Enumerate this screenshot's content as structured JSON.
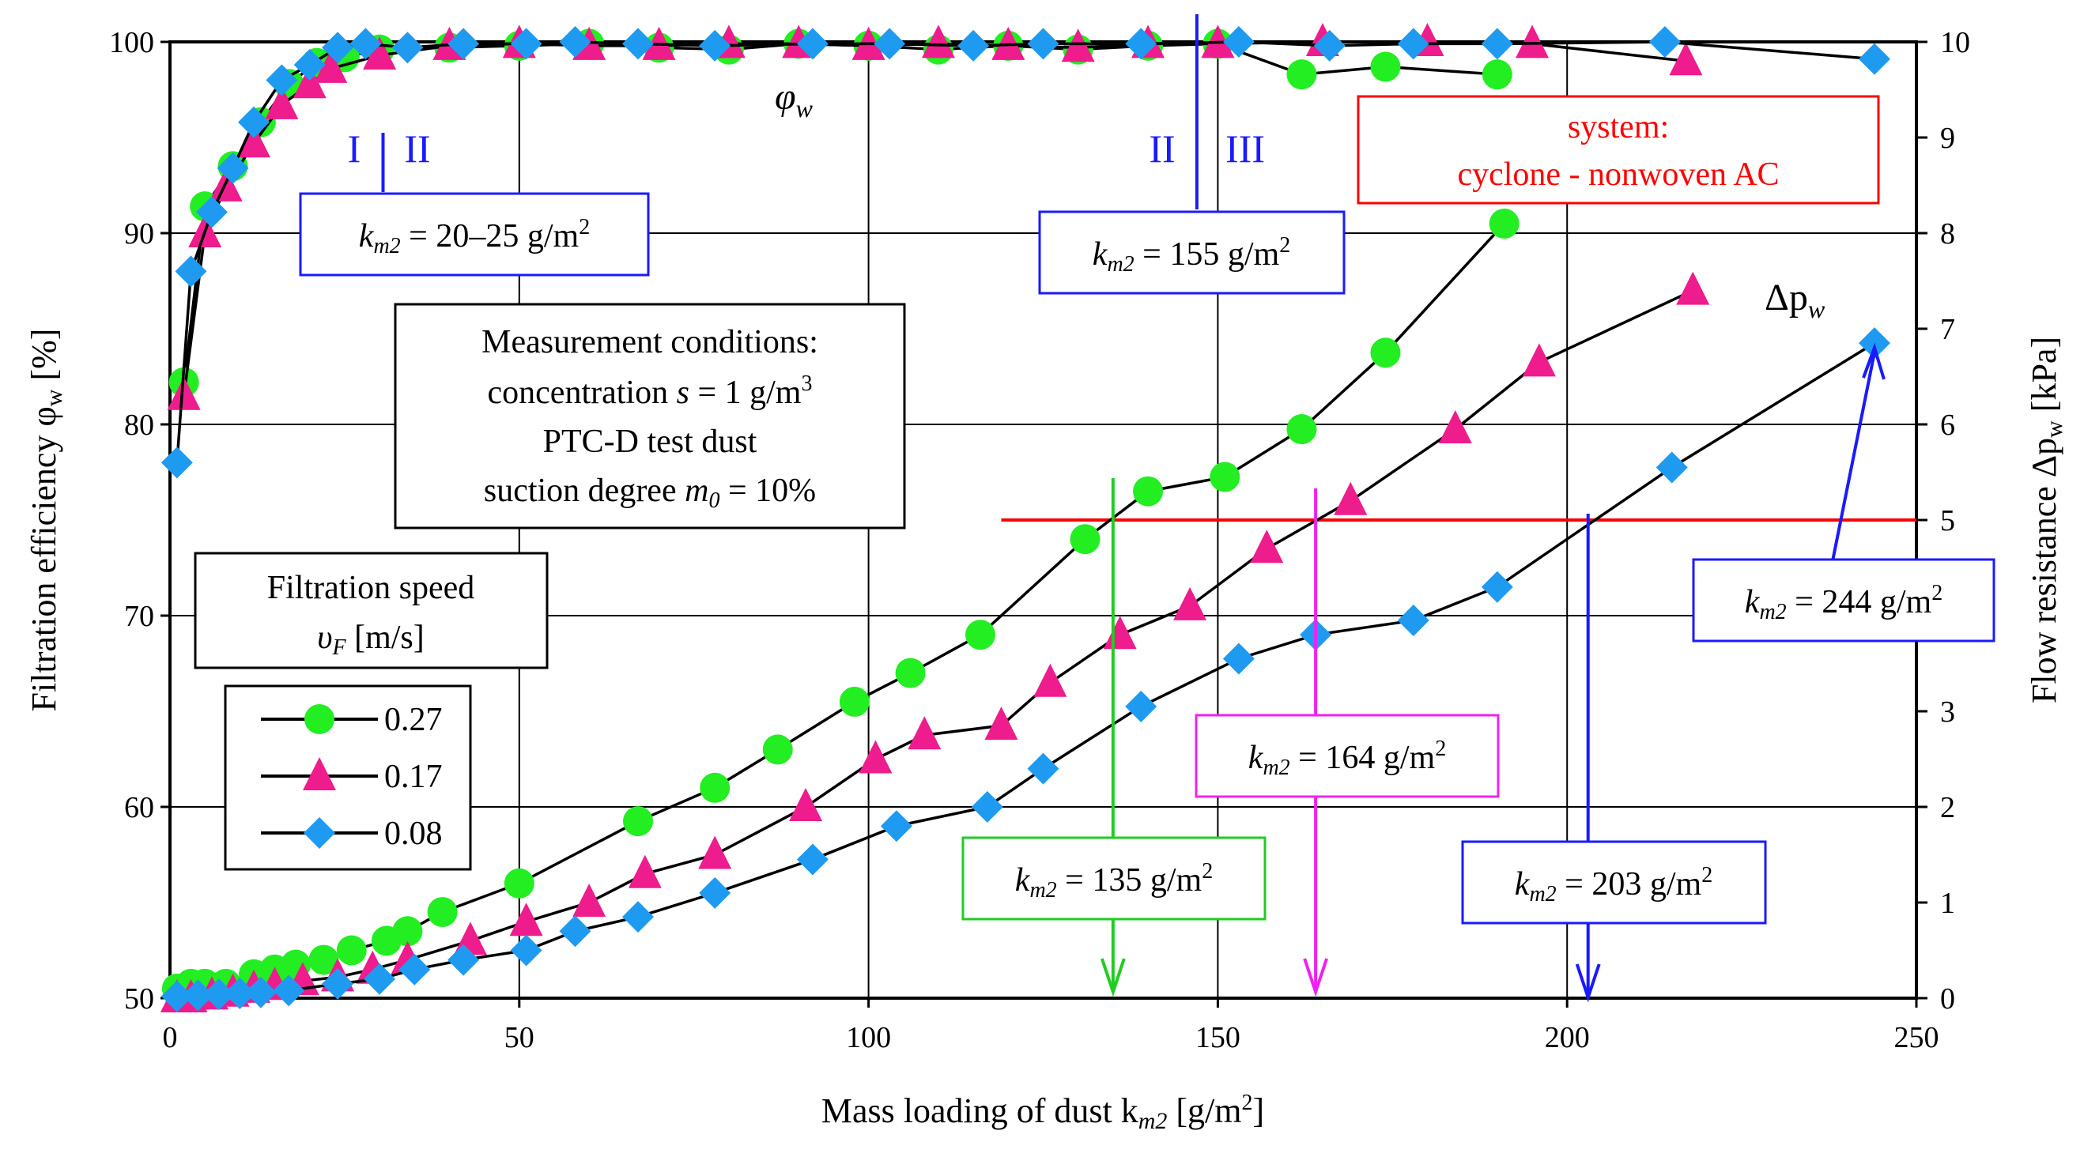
{
  "chart_data": {
    "type": "line",
    "title": "",
    "xlabel": "Mass loading of dust k",
    "xlabel_sub": "m2",
    "xlabel_unit": " [g/m",
    "xlabel_sup": "2",
    "xlabel_end": "]",
    "ylabel_left": "Filtration efficiency φ",
    "ylabel_left_sub": "w",
    "ylabel_left_unit": " [%]",
    "ylabel_right": "Flow resistance Δp",
    "ylabel_right_sub": "w",
    "ylabel_right_unit": " [kPa]",
    "xlim": [
      0,
      250
    ],
    "ylim_left": [
      50,
      100
    ],
    "ylim_right": [
      0,
      10
    ],
    "x_ticks": [
      "0",
      "50",
      "100",
      "150",
      "200",
      "250"
    ],
    "y_left_ticks": [
      "50",
      "60",
      "70",
      "80",
      "90",
      "100"
    ],
    "y_right_ticks": [
      "0",
      "1",
      "2",
      "3",
      "4",
      "5",
      "6",
      "7",
      "8",
      "9",
      "10"
    ],
    "grid": true,
    "efficiency_series": [
      {
        "name": "0.27",
        "marker": "circle",
        "color": "#22ee22",
        "x": [
          2,
          5,
          9,
          13,
          17,
          21,
          25,
          30,
          40,
          50,
          60,
          70,
          80,
          90,
          100,
          110,
          120,
          130,
          140,
          150,
          162,
          174,
          190
        ],
        "y": [
          82.2,
          91.4,
          93.5,
          95.8,
          97.8,
          98.9,
          99.2,
          99.6,
          99.7,
          99.8,
          99.9,
          99.7,
          99.6,
          99.9,
          99.8,
          99.6,
          99.8,
          99.6,
          99.8,
          99.9,
          98.3,
          98.7,
          98.3
        ]
      },
      {
        "name": "0.17",
        "marker": "triangle",
        "color": "#ee1c8c",
        "x": [
          2,
          5,
          8,
          12,
          16,
          20,
          23,
          30,
          40,
          50,
          60,
          70,
          80,
          90,
          100,
          110,
          120,
          130,
          140,
          150,
          165,
          180,
          195,
          217
        ],
        "y": [
          81.5,
          90,
          92.4,
          94.7,
          96.7,
          97.8,
          98.6,
          99.3,
          99.8,
          99.9,
          99.8,
          99.8,
          99.9,
          99.9,
          99.8,
          99.9,
          99.8,
          99.7,
          99.9,
          99.9,
          100,
          100,
          99.9,
          99
        ]
      },
      {
        "name": "0.08",
        "marker": "diamond",
        "color": "#1e9bf0",
        "x": [
          1,
          3,
          6,
          9,
          12,
          16,
          20,
          24,
          28,
          34,
          42,
          51,
          58,
          67,
          78,
          92,
          103,
          115,
          125,
          139,
          153,
          166,
          178,
          190,
          214,
          244
        ],
        "y": [
          78,
          88,
          91.1,
          93.4,
          95.8,
          98,
          98.8,
          99.7,
          99.9,
          99.7,
          99.9,
          99.9,
          100,
          99.9,
          99.8,
          99.9,
          99.9,
          99.8,
          99.9,
          99.9,
          100,
          99.8,
          99.9,
          99.9,
          100,
          99.1
        ]
      }
    ],
    "resistance_series": [
      {
        "name": "0.27",
        "marker": "circle",
        "color": "#22ee22",
        "x": [
          1,
          3,
          5,
          8,
          12,
          15,
          18,
          22,
          26,
          31,
          34,
          39,
          50,
          67,
          78,
          87,
          98,
          106,
          116,
          131,
          140,
          151,
          162,
          174,
          191
        ],
        "y": [
          0.1,
          0.15,
          0.15,
          0.15,
          0.25,
          0.3,
          0.35,
          0.4,
          0.5,
          0.6,
          0.7,
          0.9,
          1.2,
          1.85,
          2.2,
          2.6,
          3.1,
          3.4,
          3.8,
          4.8,
          5.3,
          5.45,
          5.95,
          6.75,
          8.1
        ]
      },
      {
        "name": "0.17",
        "marker": "triangle",
        "color": "#ee1c8c",
        "x": [
          1,
          3,
          6,
          9,
          12,
          15,
          19,
          24,
          29,
          34,
          43,
          51,
          60,
          68,
          78,
          91,
          101,
          108,
          119,
          126,
          136,
          146,
          157,
          169,
          184,
          196,
          218
        ],
        "y": [
          0,
          0,
          0.03,
          0.06,
          0.1,
          0.13,
          0.18,
          0.22,
          0.3,
          0.4,
          0.6,
          0.8,
          1,
          1.3,
          1.5,
          2.0,
          2.5,
          2.75,
          2.85,
          3.3,
          3.8,
          4.1,
          4.7,
          5.2,
          5.95,
          6.65,
          7.4
        ]
      },
      {
        "name": "0.08",
        "marker": "diamond",
        "color": "#1e9bf0",
        "x": [
          1,
          4,
          7,
          10,
          13,
          17,
          24,
          30,
          35,
          42,
          51,
          58,
          67,
          78,
          92,
          104,
          117,
          125,
          139,
          153,
          164,
          178,
          190,
          215,
          244
        ],
        "y": [
          0.02,
          0.03,
          0.04,
          0.05,
          0.06,
          0.08,
          0.15,
          0.2,
          0.3,
          0.4,
          0.5,
          0.7,
          0.85,
          1.1,
          1.45,
          1.8,
          2.0,
          2.4,
          3.05,
          3.55,
          3.8,
          3.95,
          4.3,
          5.55,
          6.85
        ]
      }
    ],
    "threshold_resistance_kpa": 5,
    "threshold_x_start": 119,
    "zone_dividers": [
      {
        "x": 30.5,
        "left_label": "I",
        "right_label": "II"
      },
      {
        "x": 147,
        "left_label": "II",
        "right_label": "III"
      }
    ],
    "curve_labels": {
      "efficiency": "φ",
      "efficiency_sub": "w",
      "resistance": "Δp",
      "resistance_sub": "w"
    },
    "arrows": [
      {
        "x": 135,
        "color": "#22cc22"
      },
      {
        "x": 164,
        "color": "#ee22ee"
      },
      {
        "x": 203,
        "color": "#1a1aff"
      },
      {
        "x": 244,
        "color": "#1a1aff"
      }
    ],
    "annotations": [
      {
        "id": "k1",
        "prefix": "k",
        "sub": "m2",
        "text": " = 20–25 g/m",
        "sup": "2",
        "color": "#1a1aff"
      },
      {
        "id": "k2",
        "prefix": "k",
        "sub": "m2",
        "text": " = 155 g/m",
        "sup": "2",
        "color": "#1a1aff"
      },
      {
        "id": "k3",
        "prefix": "k",
        "sub": "m2",
        "text": " = 244 g/m",
        "sup": "2",
        "color": "#1a1aff"
      },
      {
        "id": "k4",
        "prefix": "k",
        "sub": "m2",
        "text": " = 164 g/m",
        "sup": "2",
        "color": "#ee22ee"
      },
      {
        "id": "k5",
        "prefix": "k",
        "sub": "m2",
        "text": " = 135 g/m",
        "sup": "2",
        "color": "#22cc22"
      },
      {
        "id": "k6",
        "prefix": "k",
        "sub": "m2",
        "text": " = 203 g/m",
        "sup": "2",
        "color": "#1a1aff"
      }
    ],
    "conditions": {
      "heading": "Measurement conditions:",
      "line1_pre": "concentration ",
      "line1_var": "s",
      "line1_post": " = 1 g/m",
      "line1_sup": "3",
      "line2": "PTC-D test dust",
      "line3_pre": "suction degree ",
      "line3_var": "m",
      "line3_sub": "0",
      "line3_post": " = 10%"
    },
    "system_box": {
      "line1": "system:",
      "line2": "cyclone - nonwoven AC",
      "color": "#ff0000"
    },
    "legend": {
      "title_line1": "Filtration speed",
      "title_line2_var": "υ",
      "title_line2_sub": "F",
      "title_line2_unit": " [m/s]",
      "entries": [
        "0.27",
        "0.17",
        "0.08"
      ]
    }
  }
}
